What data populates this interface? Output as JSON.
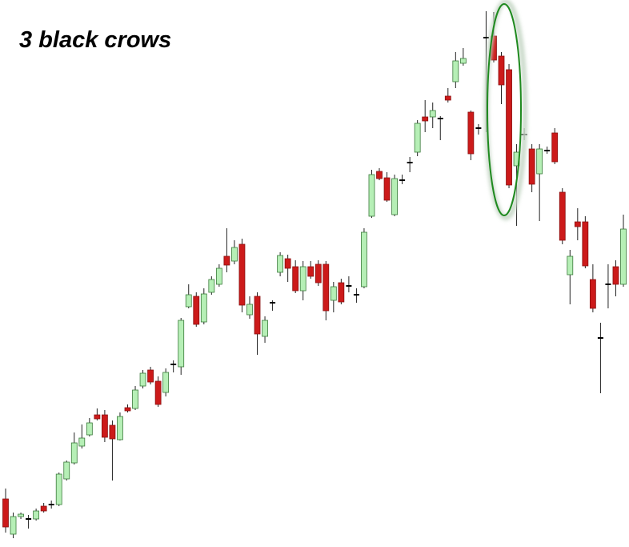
{
  "chart_data": {
    "type": "candlestick",
    "title": "3 black crows",
    "ylim": [
      0,
      683
    ],
    "up_color": "#b6efb6",
    "down_color": "#cc1a1a",
    "doji_color": "#000000",
    "wick_color": "#222222",
    "open": [
      60,
      16,
      38,
      35,
      35,
      51,
      53,
      53,
      85,
      105,
      126,
      140,
      165,
      165,
      152,
      134,
      174,
      173,
      201,
      221,
      207,
      193,
      228,
      225,
      300,
      313,
      281,
      318,
      328,
      363,
      357,
      378,
      290,
      313,
      263,
      305,
      343,
      360,
      350,
      320,
      350,
      353,
      353,
      308,
      330,
      326,
      315,
      325,
      413,
      469,
      461,
      415,
      458,
      480,
      493,
      537,
      537,
      535,
      563,
      581,
      604,
      543,
      523,
      636,
      638,
      613,
      596,
      476,
      515,
      497,
      466,
      495,
      517,
      443,
      340,
      406,
      406,
      334,
      261,
      328,
      350,
      328
    ],
    "high": [
      73,
      43,
      43,
      40,
      48,
      55,
      58,
      93,
      108,
      143,
      153,
      161,
      173,
      171,
      158,
      168,
      178,
      201,
      221,
      225,
      213,
      223,
      233,
      286,
      328,
      318,
      323,
      338,
      353,
      398,
      383,
      385,
      313,
      318,
      288,
      308,
      368,
      365,
      358,
      357,
      357,
      358,
      357,
      331,
      335,
      338,
      323,
      398,
      471,
      473,
      468,
      465,
      465,
      487,
      533,
      558,
      555,
      538,
      573,
      618,
      623,
      545,
      528,
      669,
      668,
      618,
      603,
      503,
      523,
      503,
      503,
      500,
      523,
      448,
      371,
      423,
      413,
      353,
      280,
      353,
      358,
      415
    ],
    "low": [
      18,
      11,
      35,
      23,
      33,
      43,
      48,
      51,
      83,
      103,
      123,
      138,
      158,
      131,
      83,
      133,
      168,
      171,
      198,
      203,
      175,
      188,
      218,
      215,
      298,
      275,
      278,
      315,
      325,
      343,
      353,
      293,
      285,
      240,
      255,
      295,
      338,
      331,
      317,
      308,
      335,
      326,
      283,
      293,
      303,
      318,
      305,
      323,
      411,
      458,
      431,
      413,
      453,
      468,
      488,
      518,
      523,
      508,
      555,
      573,
      601,
      483,
      515,
      518,
      605,
      553,
      448,
      401,
      508,
      443,
      407,
      491,
      478,
      378,
      303,
      383,
      348,
      293,
      192,
      298,
      313,
      325
    ],
    "close": [
      25,
      38,
      41,
      35,
      45,
      45,
      53,
      91,
      106,
      130,
      136,
      155,
      160,
      137,
      135,
      163,
      170,
      196,
      217,
      206,
      178,
      218,
      228,
      283,
      315,
      278,
      316,
      334,
      348,
      352,
      374,
      302,
      303,
      266,
      283,
      305,
      364,
      348,
      320,
      350,
      338,
      330,
      295,
      325,
      306,
      326,
      315,
      393,
      465,
      460,
      433,
      460,
      458,
      480,
      529,
      532,
      545,
      535,
      558,
      607,
      610,
      491,
      523,
      636,
      608,
      577,
      452,
      493,
      515,
      453,
      497,
      495,
      481,
      383,
      363,
      400,
      351,
      298,
      261,
      328,
      328,
      397
    ]
  }
}
